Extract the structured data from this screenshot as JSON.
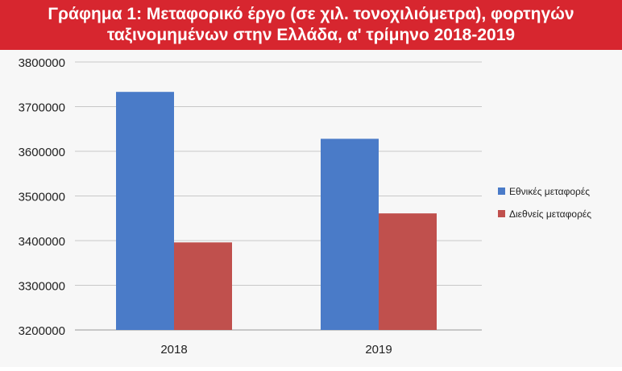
{
  "header": {
    "line1": "Γράφημα 1: Μεταφορικό έργο (σε χιλ. τονοχιλιόμετρα), φορτηγών",
    "line2": "ταξινομημένων στην Ελλάδα, α' τρίμηνο 2018-2019"
  },
  "chart_data": {
    "type": "bar",
    "title": "Γράφημα 1: Μεταφορικό έργο (σε χιλ. τονοχιλιόμετρα), φορτηγών ταξινομημένων στην Ελλάδα, α' τρίμηνο 2018-2019",
    "categories": [
      "2018",
      "2019"
    ],
    "series": [
      {
        "name": "Εθνικές μεταφορές",
        "values": [
          3733000,
          3628000
        ],
        "color": "#4a7bc8"
      },
      {
        "name": "Διεθνείς μεταφορές",
        "values": [
          3396000,
          3461000
        ],
        "color": "#c0504d"
      }
    ],
    "ylim": [
      3200000,
      3800000
    ],
    "yticks": [
      "3200000",
      "3300000",
      "3400000",
      "3500000",
      "3600000",
      "3700000",
      "3800000"
    ],
    "grid": true,
    "legend": "right"
  }
}
